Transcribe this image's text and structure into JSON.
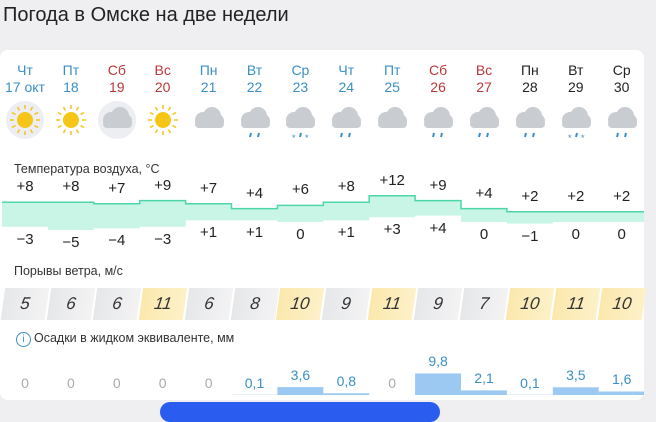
{
  "title": "Погода в Омске на две недели",
  "days": [
    {
      "dow": "Чт",
      "date": "17 окт",
      "type": "weekday",
      "icon": "sun-icon",
      "hi": "+8",
      "lo": "−3",
      "h": 8,
      "l": -3,
      "wind": "5",
      "windHigh": false,
      "precip": "0",
      "p": 0
    },
    {
      "dow": "Пт",
      "date": "18",
      "type": "weekday",
      "icon": "sun-icon",
      "hi": "+8",
      "lo": "−5",
      "h": 8,
      "l": -5,
      "wind": "6",
      "windHigh": false,
      "precip": "0",
      "p": 0
    },
    {
      "dow": "Сб",
      "date": "19",
      "type": "weekend",
      "icon": "partly-cloudy-icon",
      "hi": "+7",
      "lo": "−4",
      "h": 7,
      "l": -4,
      "wind": "6",
      "windHigh": false,
      "precip": "0",
      "p": 0
    },
    {
      "dow": "Вс",
      "date": "20",
      "type": "weekend",
      "icon": "sun-icon",
      "hi": "+9",
      "lo": "−3",
      "h": 9,
      "l": -3,
      "wind": "11",
      "windHigh": true,
      "precip": "0",
      "p": 0
    },
    {
      "dow": "Пн",
      "date": "21",
      "type": "weekday",
      "icon": "cloud-icon",
      "hi": "+7",
      "lo": "+1",
      "h": 7,
      "l": 1,
      "wind": "6",
      "windHigh": false,
      "precip": "0",
      "p": 0
    },
    {
      "dow": "Вт",
      "date": "22",
      "type": "weekday",
      "icon": "cloud-rain-icon",
      "hi": "+4",
      "lo": "+1",
      "h": 4,
      "l": 1,
      "wind": "8",
      "windHigh": false,
      "precip": "0,1",
      "p": 0.1
    },
    {
      "dow": "Ср",
      "date": "23",
      "type": "weekday",
      "icon": "cloud-sleet-icon",
      "hi": "+6",
      "lo": "0",
      "h": 6,
      "l": 0,
      "wind": "10",
      "windHigh": true,
      "precip": "3,6",
      "p": 3.6
    },
    {
      "dow": "Чт",
      "date": "24",
      "type": "weekday",
      "icon": "cloud-rain-icon",
      "hi": "+8",
      "lo": "+1",
      "h": 8,
      "l": 1,
      "wind": "9",
      "windHigh": false,
      "precip": "0,8",
      "p": 0.8
    },
    {
      "dow": "Пт",
      "date": "25",
      "type": "weekday",
      "icon": "cloud-icon",
      "hi": "+12",
      "lo": "+3",
      "h": 12,
      "l": 3,
      "wind": "11",
      "windHigh": true,
      "precip": "0",
      "p": 0
    },
    {
      "dow": "Сб",
      "date": "26",
      "type": "weekend",
      "icon": "cloud-rain-icon",
      "hi": "+9",
      "lo": "+4",
      "h": 9,
      "l": 4,
      "wind": "9",
      "windHigh": false,
      "precip": "9,8",
      "p": 9.8
    },
    {
      "dow": "Вс",
      "date": "27",
      "type": "weekend",
      "icon": "cloud-rain-icon",
      "hi": "+4",
      "lo": "0",
      "h": 4,
      "l": 0,
      "wind": "7",
      "windHigh": false,
      "precip": "2,1",
      "p": 2.1
    },
    {
      "dow": "Пн",
      "date": "28",
      "type": "later",
      "icon": "cloud-rain-icon",
      "hi": "+2",
      "lo": "−1",
      "h": 2,
      "l": -1,
      "wind": "10",
      "windHigh": true,
      "precip": "0,1",
      "p": 0.1
    },
    {
      "dow": "Вт",
      "date": "29",
      "type": "later",
      "icon": "cloud-sleet-icon",
      "hi": "+2",
      "lo": "0",
      "h": 2,
      "l": 0,
      "wind": "11",
      "windHigh": true,
      "precip": "3,5",
      "p": 3.5
    },
    {
      "dow": "Ср",
      "date": "30",
      "type": "later",
      "icon": "cloud-rain-icon",
      "hi": "+2",
      "lo": "0",
      "h": 2,
      "l": 0,
      "wind": "10",
      "windHigh": true,
      "precip": "1,6",
      "p": 1.6
    }
  ],
  "labels": {
    "temp": "Температура воздуха, °C",
    "wind": "Порывы ветра, м/с",
    "precip": "Осадки в жидком эквиваленте, мм"
  },
  "colors": {
    "weekday": "#3a8fc7",
    "weekend": "#b8373a",
    "later": "#222222",
    "tempBand": "#c9f5e6",
    "tempLine": "#4ed6a8",
    "precip": "#9cc9f2"
  }
}
